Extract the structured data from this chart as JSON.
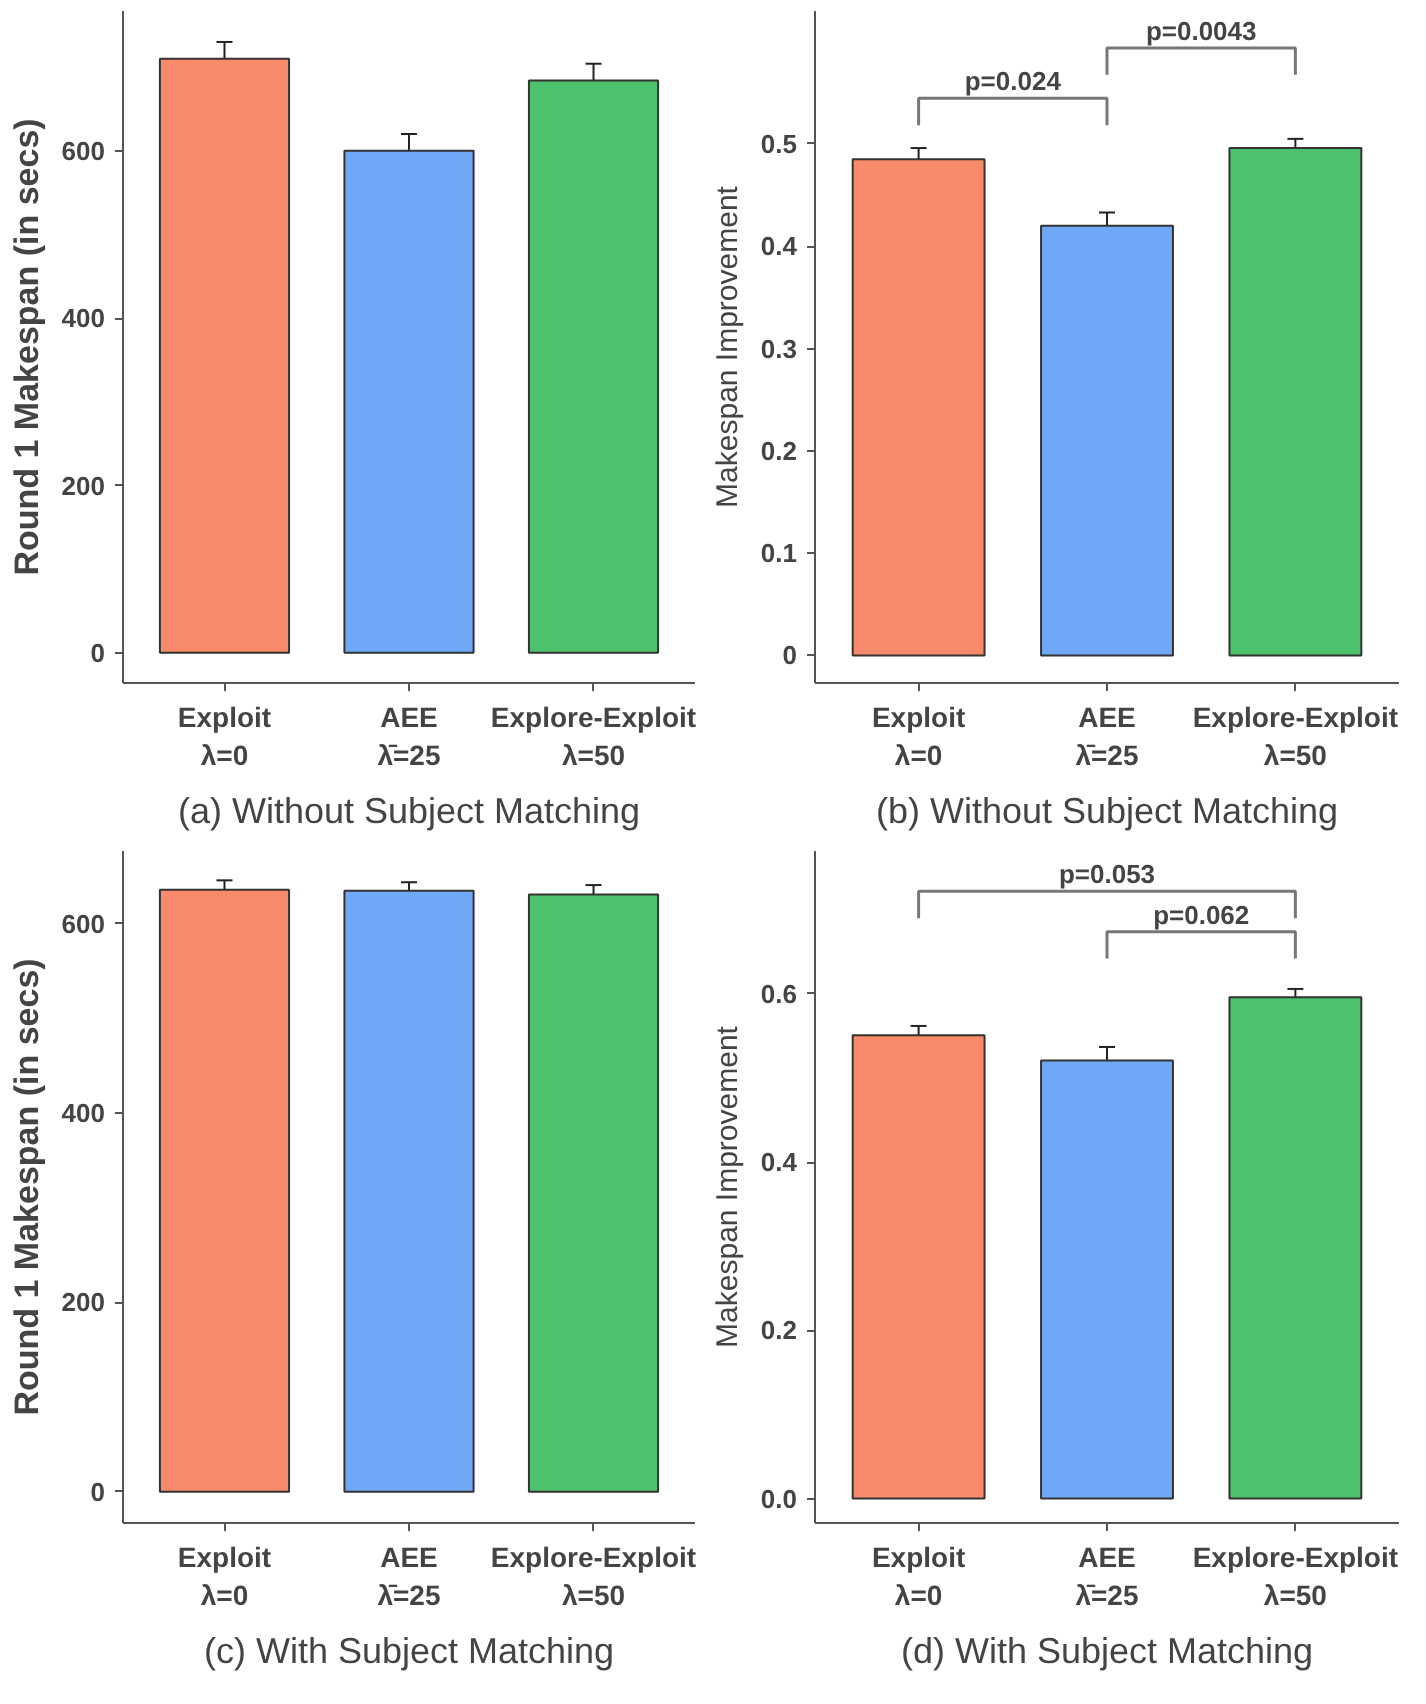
{
  "chart_data": [
    {
      "type": "bar",
      "title": "(a) Without Subject Matching",
      "ylabel": "Round 1 Makespan (in secs)",
      "categories": [
        "Exploit\nλ=0",
        "AEE\nλ̄=25",
        "Explore-Exploit\nλ=50"
      ],
      "values": [
        710,
        600,
        684
      ],
      "errors": [
        20,
        20,
        20
      ],
      "colors": [
        "#f8896a",
        "#70a8f8",
        "#4cc26c"
      ],
      "ylim": [
        -36,
        767
      ],
      "yticks": [
        0,
        200,
        400,
        600
      ],
      "grid": false
    },
    {
      "type": "bar",
      "title": "(b) Without Subject Matching",
      "ylabel": "Makespan Improvement",
      "categories": [
        "Exploit\nλ=0",
        "AEE\nλ̄=25",
        "Explore-Exploit\nλ=50"
      ],
      "values": [
        0.485,
        0.42,
        0.496
      ],
      "errors": [
        0.011,
        0.013,
        0.009
      ],
      "colors": [
        "#f8896a",
        "#70a8f8",
        "#4cc26c"
      ],
      "ylim": [
        -0.027,
        0.63
      ],
      "yticks": [
        0,
        0.1,
        0.2,
        0.3,
        0.4,
        0.5
      ],
      "grid": false,
      "annotations": [
        "p=0.024",
        "p=0.0043"
      ]
    },
    {
      "type": "bar",
      "title": "(c) With Subject Matching",
      "ylabel": "Round 1 Makespan (in secs)",
      "categories": [
        "Exploit\nλ=0",
        "AEE\nλ̄=25",
        "Explore-Exploit\nλ=50"
      ],
      "values": [
        636,
        635,
        631
      ],
      "errors": [
        10,
        9,
        10
      ],
      "colors": [
        "#f8896a",
        "#70a8f8",
        "#4cc26c"
      ],
      "ylim": [
        -33,
        677
      ],
      "yticks": [
        0,
        200,
        400,
        600
      ],
      "grid": false
    },
    {
      "type": "bar",
      "title": "(d) With Subject Matching",
      "ylabel": "Makespan Improvement",
      "categories": [
        "Exploit\nλ=0",
        "AEE\nλ̄=25",
        "Explore-Exploit\nλ=50"
      ],
      "values": [
        0.551,
        0.521,
        0.596
      ],
      "errors": [
        0.011,
        0.016,
        0.01
      ],
      "colors": [
        "#f8896a",
        "#70a8f8",
        "#4cc26c"
      ],
      "ylim": [
        -0.029,
        0.77
      ],
      "yticks": [
        {
          "value": 0,
          "label": "0.0"
        },
        0.2,
        0.4,
        0.6
      ],
      "grid": false,
      "annotations": [
        "p=0.053",
        "p=0.062"
      ]
    }
  ]
}
